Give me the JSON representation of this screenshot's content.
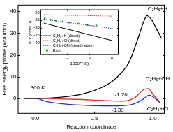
{
  "chart_data": [
    {
      "type": "line",
      "x_label": "Reaction coordinate",
      "y_label": "Free energy profile (kcal/mol)",
      "xlim": [
        -0.15,
        1.1
      ],
      "xticks": [
        {
          "value": 0,
          "label": "0.0"
        },
        {
          "value": 0.5,
          "label": "0.5"
        },
        {
          "value": 1,
          "label": "1.0"
        }
      ],
      "ylim": [
        -7,
        43
      ],
      "yticks": [
        0,
        10,
        20,
        30,
        40
      ],
      "grid": false,
      "series": [
        {
          "color": "#000000",
          "line_style": "solid",
          "x": [
            -0.1,
            0,
            0.2,
            0.4,
            0.6,
            0.7,
            0.8,
            0.87,
            0.92,
            0.95,
            0.99,
            1.03,
            1.07
          ],
          "values": [
            0,
            0,
            0.5,
            2,
            6,
            10,
            17,
            27,
            35,
            38,
            36,
            32,
            28
          ]
        },
        {
          "color": "#e0302a",
          "line_style": "solid",
          "x": [
            -0.1,
            0,
            0.2,
            0.4,
            0.6,
            0.75,
            0.85,
            0.92,
            0.96,
            1.0,
            1.03,
            1.06
          ],
          "values": [
            0,
            0,
            -0.2,
            -0.5,
            -1,
            -1.26,
            0.5,
            4,
            4.5,
            2,
            0,
            -1.5
          ]
        },
        {
          "color": "#2233bb",
          "line_style": "solid",
          "x": [
            -0.1,
            0,
            0.1,
            0.3,
            0.5,
            0.65,
            0.8,
            0.9,
            0.97,
            1.02,
            1.06
          ],
          "values": [
            0,
            0,
            -1.5,
            -2.8,
            -3.3,
            -3.39,
            -3,
            -1,
            1.5,
            0,
            -2
          ]
        }
      ],
      "annotations": [
        {
          "text": "C₂H₆+H",
          "x": 1.04,
          "y": 41,
          "color": "#000000"
        },
        {
          "text": "C₂H₆+OH",
          "x": 1.04,
          "y": 9,
          "color": "#000000"
        },
        {
          "text": "C₂H₆+Cl",
          "x": 1.04,
          "y": -4.8,
          "color": "#000000"
        },
        {
          "text": "300 K",
          "x": 0.02,
          "y": 5,
          "color": "#000000"
        },
        {
          "text": "-1.26",
          "x": 0.73,
          "y": 1.5,
          "color": "#000000"
        },
        {
          "text": "-3.39",
          "x": 0.7,
          "y": -5.5,
          "color": "#000000"
        }
      ]
    },
    {
      "type": "line",
      "x_label": "1000/T(K)",
      "y_label": "ln k (cm³s⁻¹)",
      "xlim": [
        0.8,
        4.3
      ],
      "xticks": [
        1,
        2,
        3,
        4
      ],
      "ylim": [
        -48,
        -18
      ],
      "yticks": [
        -20,
        -25,
        -30,
        -35,
        -40
      ],
      "grid": false,
      "legend": "lower left",
      "series": [
        {
          "name": "C₂H₆+H (direct)",
          "color": "#000000",
          "line_style": "solid",
          "x": [
            0.95,
            4.0
          ],
          "values": [
            -27,
            -38.5
          ]
        },
        {
          "name": "C₂H₆+Cl (direct)",
          "color": "#e0302a",
          "line_style": "dotted",
          "x": [
            0.95,
            2,
            3,
            4
          ],
          "values": [
            -21.5,
            -21.8,
            -22.1,
            -22.4
          ]
        },
        {
          "name": "C₂H₆+OH (steady state)",
          "color": "#2233bb",
          "line_style": "dotted",
          "x": [
            0.95,
            1.5,
            2,
            2.5,
            3,
            3.5,
            4
          ],
          "values": [
            -24.5,
            -25.5,
            -26.5,
            -27.5,
            -28.5,
            -29.5,
            -30.5
          ]
        },
        {
          "name": "Expt.",
          "type": "scatter",
          "marker": "square",
          "color": "#2ca02c",
          "x": [
            1.0,
            1.25,
            1.5,
            1.8,
            2.1,
            2.5,
            2.9,
            3.3
          ],
          "values": [
            -24,
            -24.7,
            -25.3,
            -26,
            -26.6,
            -27.4,
            -28.1,
            -28.6
          ]
        }
      ]
    }
  ]
}
